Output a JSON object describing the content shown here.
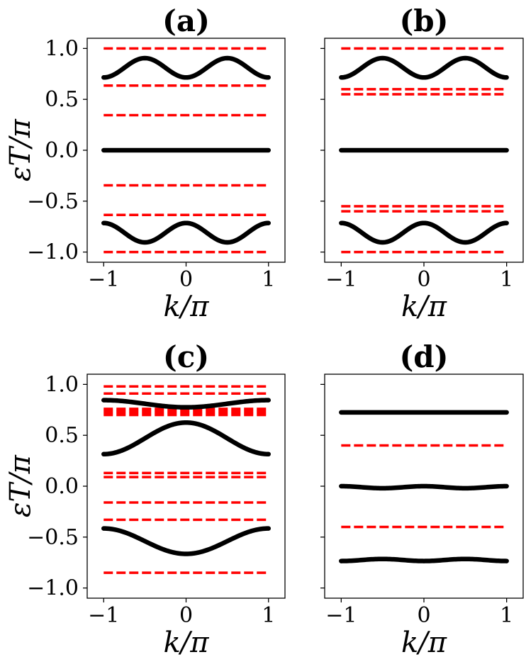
{
  "chart_data": [
    {
      "panel": "(a)",
      "type": "line",
      "title": "(a)",
      "xlabel": "k/π",
      "ylabel": "εT/π",
      "xlim": [
        -1.2,
        1.2
      ],
      "ylim": [
        -1.1,
        1.1
      ],
      "xticks": [
        -1,
        0,
        1
      ],
      "xtick_labels": [
        "−1",
        "0",
        "1"
      ],
      "yticks": [
        1.0,
        0.5,
        0.0,
        -0.5,
        -1.0
      ],
      "ytick_labels": [
        "1.0",
        "0.5",
        "0.0",
        "−0.5",
        "−1.0"
      ],
      "solid_bands": [
        {
          "name": "upper band",
          "const": 0.81,
          "amp": -0.095,
          "harmonic": 2
        },
        {
          "name": "middle band",
          "const": 0.0,
          "amp": 0.0,
          "harmonic": 0
        },
        {
          "name": "lower band",
          "const": -0.81,
          "amp": 0.095,
          "harmonic": 2
        }
      ],
      "dashed_levels": [
        1.0,
        0.635,
        0.345,
        -0.345,
        -0.635,
        -1.0
      ]
    },
    {
      "panel": "(b)",
      "type": "line",
      "title": "(b)",
      "xlabel": "k/π",
      "ylabel": "",
      "xlim": [
        -1.2,
        1.2
      ],
      "ylim": [
        -1.1,
        1.1
      ],
      "xticks": [
        -1,
        0,
        1
      ],
      "xtick_labels": [
        "−1",
        "0",
        "1"
      ],
      "yticks": [
        1.0,
        0.5,
        0.0,
        -0.5,
        -1.0
      ],
      "ytick_labels": [],
      "solid_bands": [
        {
          "name": "upper band",
          "const": 0.81,
          "amp": -0.095,
          "harmonic": 2
        },
        {
          "name": "middle band",
          "const": 0.0,
          "amp": 0.0,
          "harmonic": 0
        },
        {
          "name": "lower band",
          "const": -0.81,
          "amp": 0.095,
          "harmonic": 2
        }
      ],
      "dashed_levels": [
        1.0,
        0.6,
        0.55,
        -0.55,
        -0.6,
        -1.0
      ]
    },
    {
      "panel": "(c)",
      "type": "line",
      "title": "(c)",
      "xlabel": "k/π",
      "ylabel": "εT/π",
      "xlim": [
        -1.2,
        1.2
      ],
      "ylim": [
        -1.1,
        1.1
      ],
      "xticks": [
        -1,
        0,
        1
      ],
      "xtick_labels": [
        "−1",
        "0",
        "1"
      ],
      "yticks": [
        1.0,
        0.5,
        0.0,
        -0.5,
        -1.0
      ],
      "ytick_labels": [
        "1.0",
        "0.5",
        "0.0",
        "−0.5",
        "−1.0"
      ],
      "solid_bands": [
        {
          "name": "top band",
          "const": 0.81,
          "amp": -0.035,
          "harmonic": 1
        },
        {
          "name": "upper-middle band",
          "const": 0.47,
          "amp": 0.155,
          "harmonic": 1
        },
        {
          "name": "lower band",
          "const": -0.54,
          "amp": -0.125,
          "harmonic": 1
        }
      ],
      "dashed_levels": [
        0.98,
        0.91,
        0.76,
        0.74,
        0.72,
        0.7,
        0.13,
        0.09,
        -0.16,
        -0.33,
        -0.85
      ]
    },
    {
      "panel": "(d)",
      "type": "line",
      "title": "(d)",
      "xlabel": "k/π",
      "ylabel": "",
      "xlim": [
        -1.2,
        1.2
      ],
      "ylim": [
        -1.1,
        1.1
      ],
      "xticks": [
        -1,
        0,
        1
      ],
      "xtick_labels": [
        "−1",
        "0",
        "1"
      ],
      "yticks": [
        1.0,
        0.5,
        0.0,
        -0.5,
        -1.0
      ],
      "ytick_labels": [],
      "solid_bands": [
        {
          "name": "top band",
          "const": 0.725,
          "amp": 0.0,
          "harmonic": 0
        },
        {
          "name": "middle band",
          "const": -0.01,
          "amp": 0.01,
          "harmonic": 2
        },
        {
          "name": "bottom band",
          "const": -0.725,
          "amp": -0.01,
          "harmonic": 2
        }
      ],
      "dashed_levels": [
        0.4,
        -0.4
      ]
    }
  ]
}
